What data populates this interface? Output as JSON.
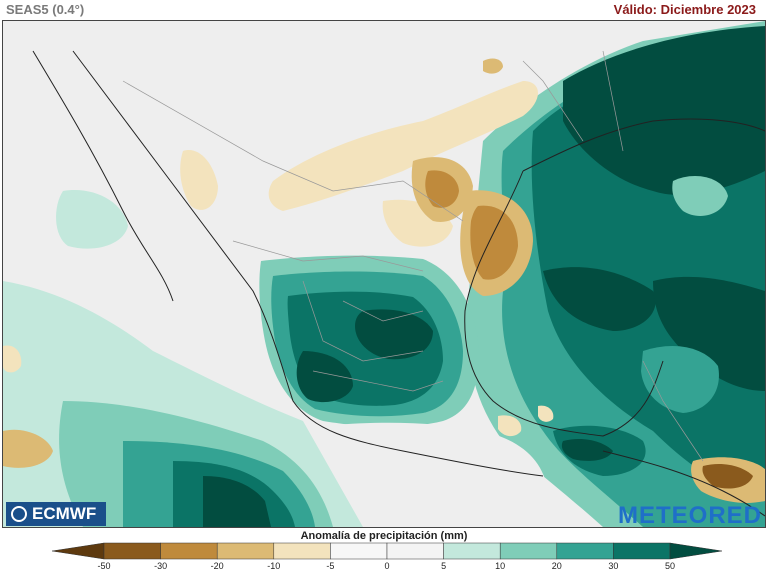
{
  "header": {
    "model": "SEAS5 (0.4°)",
    "valid": "Válido: Diciembre 2023"
  },
  "map": {
    "region": "Mexico and surroundings",
    "variable": "precipitation anomaly"
  },
  "logos": {
    "ecmwf": "ECMWF",
    "meteored": "METEORED"
  },
  "legend": {
    "title": "Anomalía de precipitación (mm)",
    "ticks": [
      "-50",
      "-30",
      "-20",
      "-10",
      "-5",
      "0",
      "5",
      "10",
      "20",
      "30",
      "50"
    ],
    "colors": [
      "#5e3a0f",
      "#8a5a1d",
      "#bf8a3c",
      "#dcba74",
      "#f3e3bd",
      "#f7f7f7",
      "#f4f4f4",
      "#c3e8dc",
      "#7fcdb8",
      "#34a393",
      "#0b7466",
      "#024d40"
    ]
  },
  "colors": {
    "dry": "#c9953f",
    "wet": "#0b6e60",
    "neutral": "#eeeeee"
  }
}
